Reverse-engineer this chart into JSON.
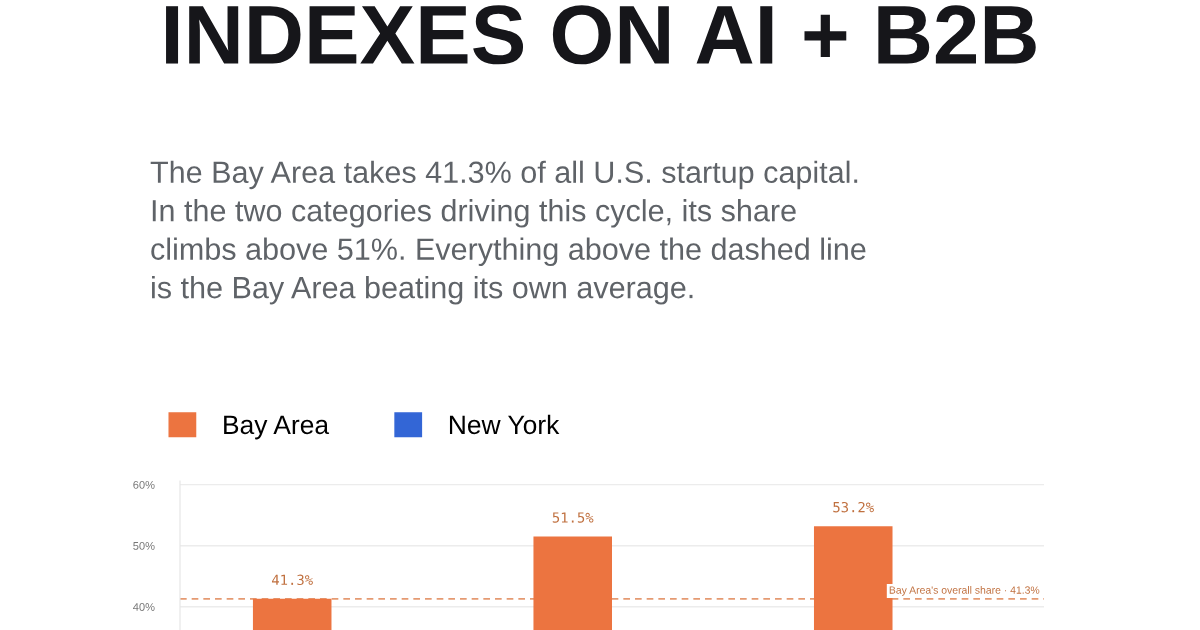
{
  "chart_data": {
    "type": "bar",
    "title": "INDEXES ON AI + B2B",
    "subtitle": "The Bay Area takes 41.3% of all U.S. startup capital.\nIn the two categories driving this cycle, its share\nclimbs above 51%. Everything above the dashed line\nis the Bay Area beating its own average.",
    "categories": [
      null,
      null,
      null
    ],
    "series": [
      {
        "name": "Bay Area",
        "color": "#ec7440",
        "values": [
          41.3,
          51.5,
          53.2
        ],
        "value_labels": [
          "41.3%",
          "51.5%",
          "53.2%"
        ]
      },
      {
        "name": "New York",
        "color": "#3366d6",
        "values": [
          null,
          null,
          null
        ]
      }
    ],
    "ylim": [
      36.2,
      60.6
    ],
    "yticks": [
      {
        "value": 40,
        "label": "40%"
      },
      {
        "value": 50,
        "label": "50%"
      },
      {
        "value": 60,
        "label": "60%"
      }
    ],
    "ref_lines": [
      {
        "axis": "y",
        "value": 41.3,
        "label": "Bay Area's overall share · 41.3%",
        "color": "#e59a72",
        "line_style": "dashed"
      }
    ],
    "grid": "y",
    "legend": "top left"
  }
}
